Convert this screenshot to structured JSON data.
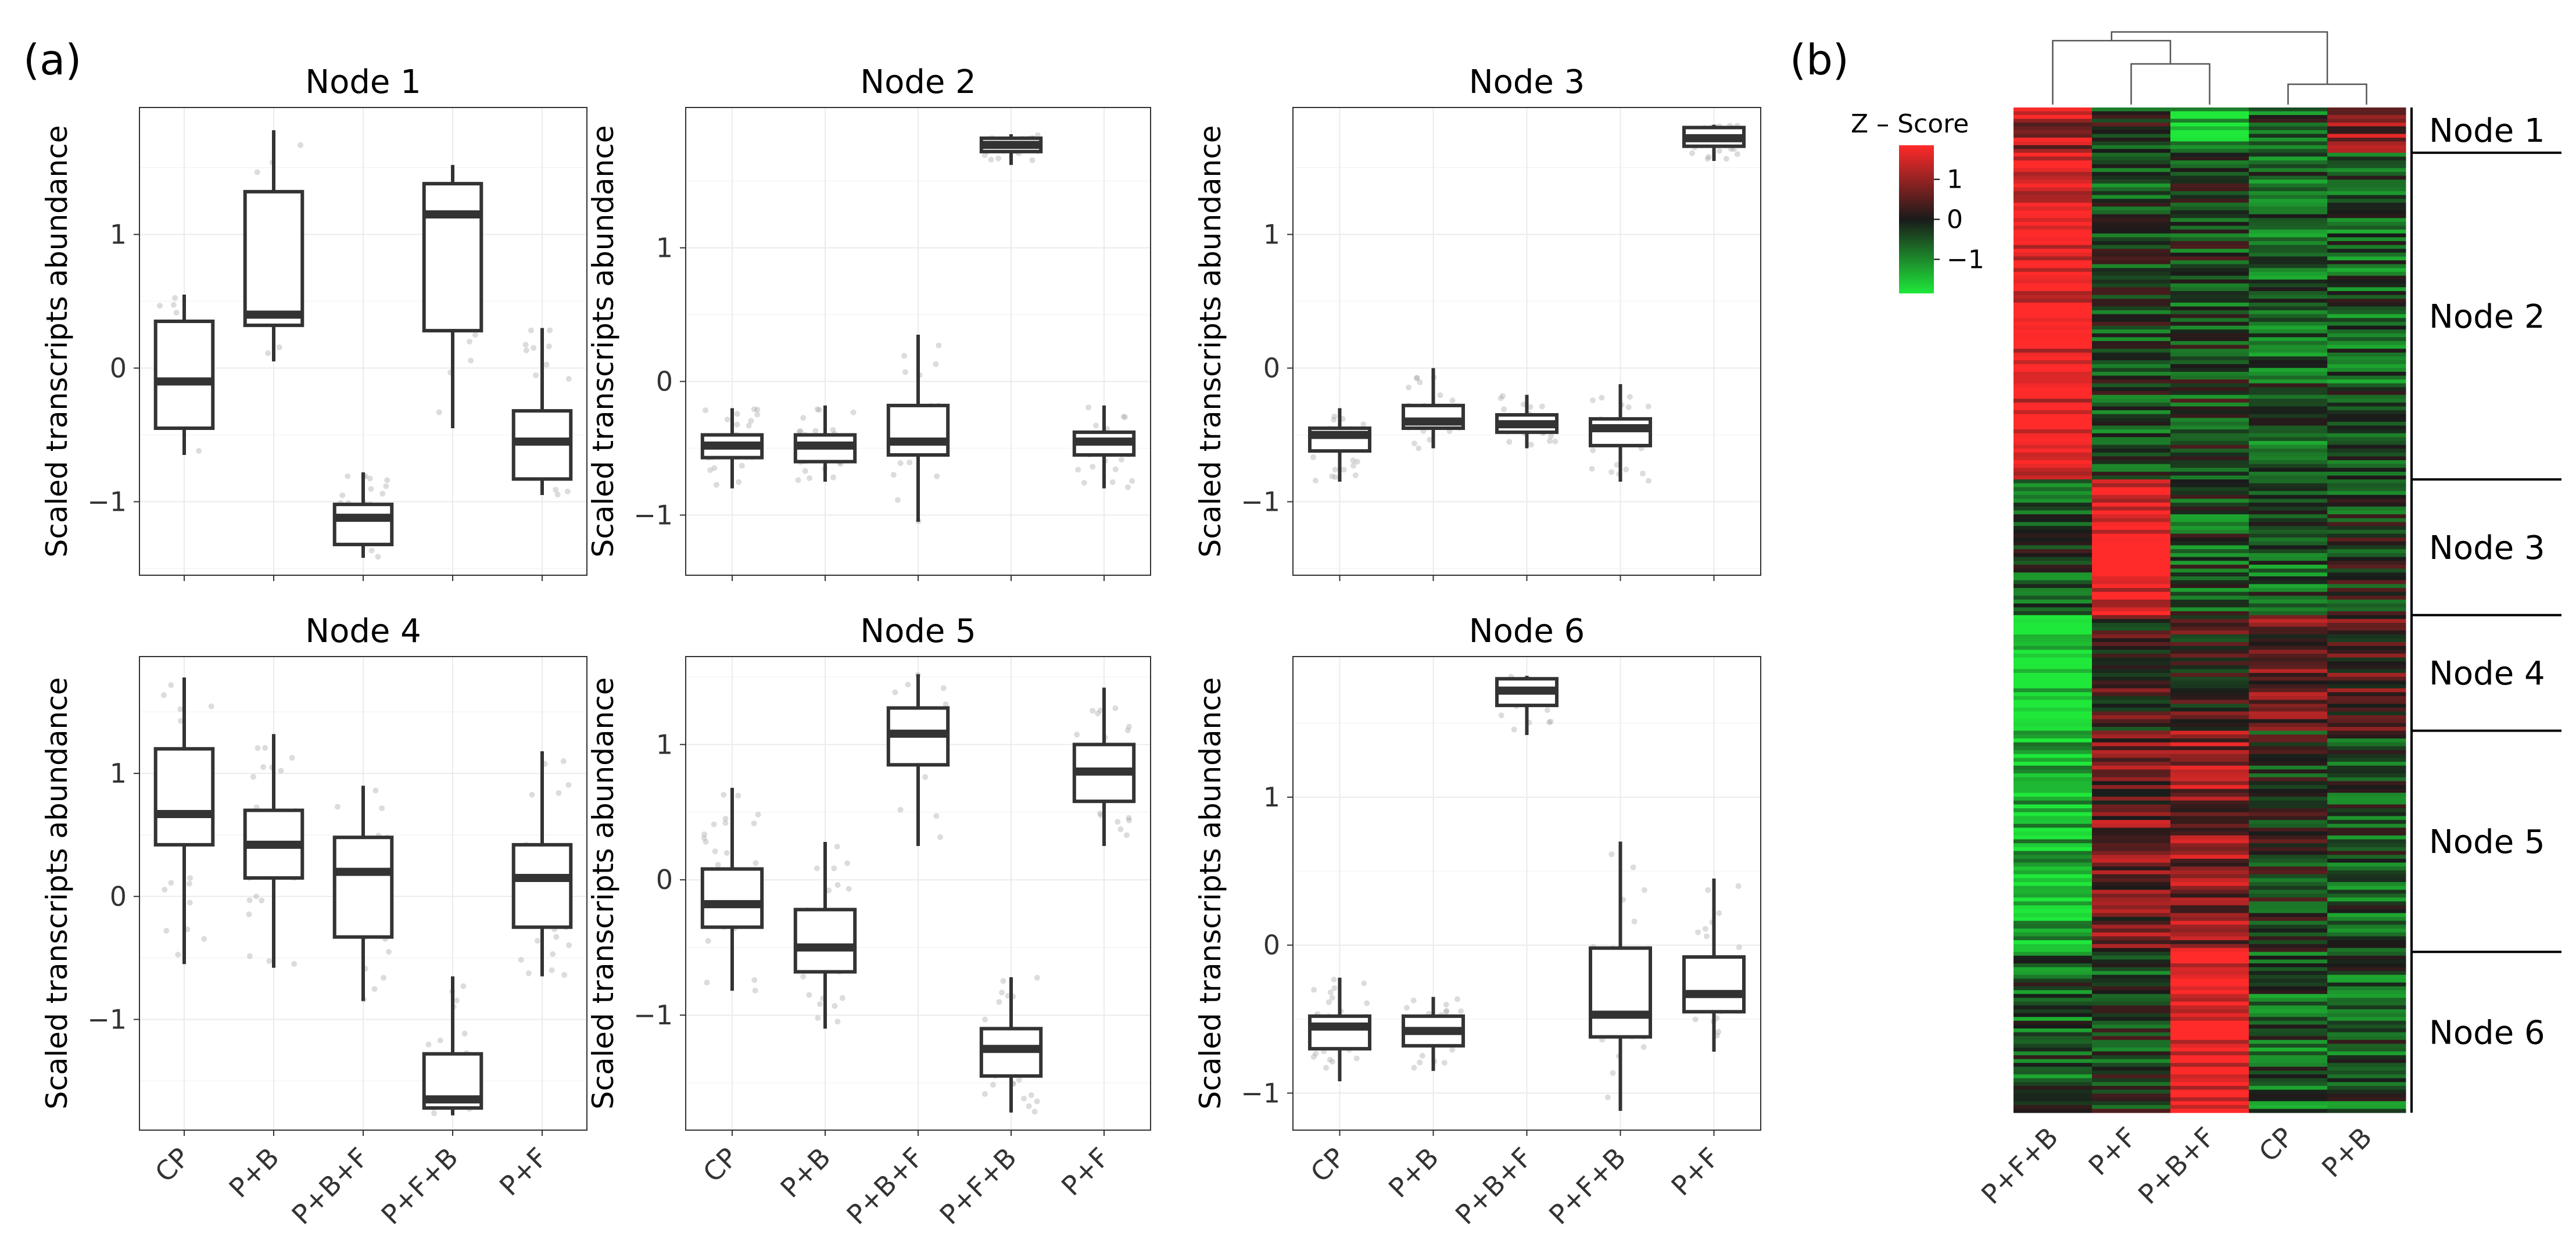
{
  "panel_labels": {
    "a": "(a)",
    "b": "(b)"
  },
  "chart_data": [
    {
      "type": "box",
      "title": "Node 1",
      "ylabel": "Scaled transcripts abundance",
      "categories": [
        "CP",
        "P+B",
        "P+B+F",
        "P+F+B",
        "P+F"
      ],
      "yticks": [
        -1,
        0,
        1
      ],
      "ylim": [
        -1.55,
        1.95
      ],
      "boxes": [
        {
          "q1": -0.45,
          "median": -0.1,
          "q3": 0.35,
          "low": -0.65,
          "high": 0.55
        },
        {
          "q1": 0.32,
          "median": 0.4,
          "q3": 1.32,
          "low": 0.05,
          "high": 1.78
        },
        {
          "q1": -1.32,
          "median": -1.12,
          "q3": -1.02,
          "low": -1.42,
          "high": -0.78
        },
        {
          "q1": 0.28,
          "median": 1.15,
          "q3": 1.38,
          "low": -0.45,
          "high": 1.52
        },
        {
          "q1": -0.83,
          "median": -0.55,
          "q3": -0.32,
          "low": -0.95,
          "high": 0.3
        }
      ]
    },
    {
      "type": "box",
      "title": "Node 2",
      "ylabel": "Scaled transcripts abundance",
      "categories": [
        "CP",
        "P+B",
        "P+B+F",
        "P+F+B",
        "P+F"
      ],
      "yticks": [
        -1,
        0,
        1
      ],
      "ylim": [
        -1.45,
        2.05
      ],
      "boxes": [
        {
          "q1": -0.57,
          "median": -0.48,
          "q3": -0.4,
          "low": -0.8,
          "high": -0.2
        },
        {
          "q1": -0.6,
          "median": -0.48,
          "q3": -0.4,
          "low": -0.75,
          "high": -0.18
        },
        {
          "q1": -0.55,
          "median": -0.45,
          "q3": -0.18,
          "low": -1.05,
          "high": 0.35
        },
        {
          "q1": 1.72,
          "median": 1.77,
          "q3": 1.82,
          "low": 1.62,
          "high": 1.85
        },
        {
          "q1": -0.55,
          "median": -0.45,
          "q3": -0.38,
          "low": -0.8,
          "high": -0.18
        }
      ]
    },
    {
      "type": "box",
      "title": "Node 3",
      "ylabel": "Scaled transcripts abundance",
      "categories": [
        "CP",
        "P+B",
        "P+B+F",
        "P+F+B",
        "P+F"
      ],
      "yticks": [
        -1,
        0,
        1
      ],
      "ylim": [
        -1.55,
        1.95
      ],
      "boxes": [
        {
          "q1": -0.62,
          "median": -0.5,
          "q3": -0.45,
          "low": -0.85,
          "high": -0.3
        },
        {
          "q1": -0.45,
          "median": -0.4,
          "q3": -0.28,
          "low": -0.6,
          "high": 0.0
        },
        {
          "q1": -0.48,
          "median": -0.42,
          "q3": -0.35,
          "low": -0.6,
          "high": -0.2
        },
        {
          "q1": -0.58,
          "median": -0.45,
          "q3": -0.38,
          "low": -0.85,
          "high": -0.12
        },
        {
          "q1": 1.66,
          "median": 1.72,
          "q3": 1.8,
          "low": 1.55,
          "high": 1.82
        }
      ]
    },
    {
      "type": "box",
      "title": "Node 4",
      "ylabel": "Scaled transcripts abundance",
      "categories": [
        "CP",
        "P+B",
        "P+B+F",
        "P+F+B",
        "P+F"
      ],
      "yticks": [
        -1,
        0,
        1
      ],
      "ylim": [
        -1.9,
        1.95
      ],
      "boxes": [
        {
          "q1": 0.42,
          "median": 0.67,
          "q3": 1.2,
          "low": -0.55,
          "high": 1.78
        },
        {
          "q1": 0.15,
          "median": 0.42,
          "q3": 0.7,
          "low": -0.58,
          "high": 1.32
        },
        {
          "q1": -0.33,
          "median": 0.2,
          "q3": 0.48,
          "low": -0.85,
          "high": 0.9
        },
        {
          "q1": -1.72,
          "median": -1.65,
          "q3": -1.28,
          "low": -1.78,
          "high": -0.65
        },
        {
          "q1": -0.25,
          "median": 0.15,
          "q3": 0.42,
          "low": -0.65,
          "high": 1.18
        }
      ]
    },
    {
      "type": "box",
      "title": "Node 5",
      "ylabel": "Scaled transcripts abundance",
      "categories": [
        "CP",
        "P+B",
        "P+B+F",
        "P+F+B",
        "P+F"
      ],
      "yticks": [
        -1,
        0,
        1
      ],
      "ylim": [
        -1.85,
        1.65
      ],
      "boxes": [
        {
          "q1": -0.35,
          "median": -0.18,
          "q3": 0.08,
          "low": -0.82,
          "high": 0.68
        },
        {
          "q1": -0.68,
          "median": -0.5,
          "q3": -0.22,
          "low": -1.1,
          "high": 0.28
        },
        {
          "q1": 0.85,
          "median": 1.08,
          "q3": 1.27,
          "low": 0.25,
          "high": 1.52
        },
        {
          "q1": -1.45,
          "median": -1.25,
          "q3": -1.1,
          "low": -1.72,
          "high": -0.72
        },
        {
          "q1": 0.58,
          "median": 0.8,
          "q3": 1.0,
          "low": 0.25,
          "high": 1.42
        }
      ]
    },
    {
      "type": "box",
      "title": "Node 6",
      "ylabel": "Scaled transcripts abundance",
      "categories": [
        "CP",
        "P+B",
        "P+B+F",
        "P+F+B",
        "P+F"
      ],
      "yticks": [
        -1,
        0,
        1
      ],
      "ylim": [
        -1.25,
        1.95
      ],
      "boxes": [
        {
          "q1": -0.7,
          "median": -0.55,
          "q3": -0.48,
          "low": -0.92,
          "high": -0.22
        },
        {
          "q1": -0.68,
          "median": -0.58,
          "q3": -0.48,
          "low": -0.85,
          "high": -0.35
        },
        {
          "q1": 1.62,
          "median": 1.72,
          "q3": 1.8,
          "low": 1.42,
          "high": 1.82
        },
        {
          "q1": -0.62,
          "median": -0.47,
          "q3": -0.02,
          "low": -1.12,
          "high": 0.7
        },
        {
          "q1": -0.45,
          "median": -0.33,
          "q3": -0.08,
          "low": -0.72,
          "high": 0.45
        }
      ]
    },
    {
      "type": "heatmap",
      "legend": {
        "title": "Z – Score",
        "ticks": [
          "1",
          "0",
          "−1"
        ]
      },
      "columns": [
        "P+F+B",
        "P+F",
        "P+B+F",
        "CP",
        "P+B"
      ],
      "colors": {
        "high": "#ff2a2a",
        "mid": "#1a1a1a",
        "low": "#1fe83a"
      },
      "nodes": [
        {
          "label": "Node 1",
          "fraction": 0.045,
          "pattern": [
            1,
            -0.2,
            -1.3,
            -0.4,
            0.8
          ]
        },
        {
          "label": "Node 2",
          "fraction": 0.325,
          "pattern": [
            1.6,
            -0.3,
            -0.3,
            -0.5,
            -0.5
          ]
        },
        {
          "label": "Node 3",
          "fraction": 0.135,
          "pattern": [
            -0.3,
            1.6,
            -0.4,
            -0.5,
            -0.2
          ]
        },
        {
          "label": "Node 4",
          "fraction": 0.115,
          "pattern": [
            -1.6,
            0.2,
            0.1,
            0.6,
            0.4
          ]
        },
        {
          "label": "Node 5",
          "fraction": 0.22,
          "pattern": [
            -1.3,
            0.6,
            0.8,
            -0.1,
            -0.4
          ]
        },
        {
          "label": "Node 6",
          "fraction": 0.16,
          "pattern": [
            -0.5,
            -0.3,
            1.6,
            -0.5,
            -0.5
          ]
        }
      ]
    }
  ]
}
